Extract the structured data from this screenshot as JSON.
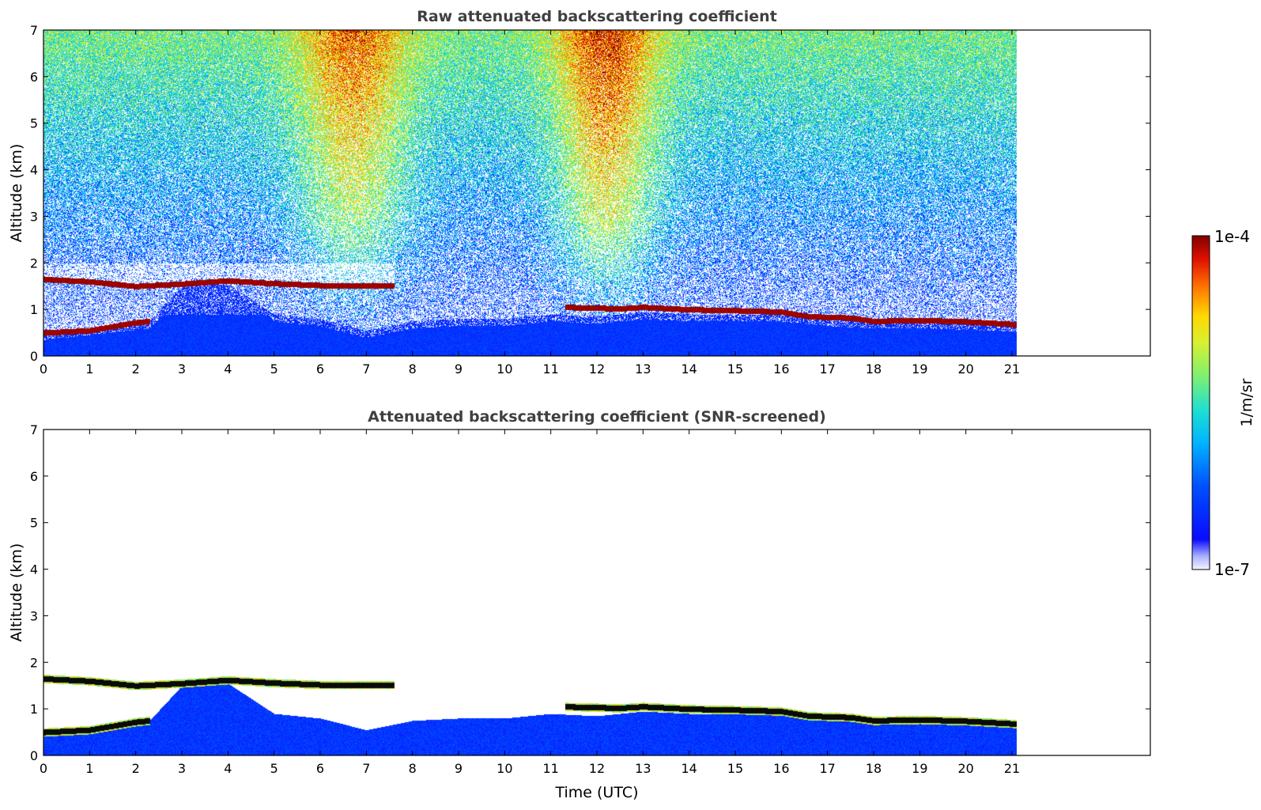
{
  "chart_data": [
    {
      "type": "heatmap",
      "title": "Raw attenuated backscattering coefficient",
      "xlabel": "",
      "ylabel": "Altitude (km)",
      "xlim": [
        0,
        24
      ],
      "ylim": [
        0,
        7
      ],
      "xticks": [
        "0",
        "1",
        "2",
        "3",
        "4",
        "5",
        "6",
        "7",
        "8",
        "9",
        "10",
        "11",
        "12",
        "13",
        "14",
        "15",
        "16",
        "17",
        "18",
        "19",
        "20",
        "21"
      ],
      "yticks": [
        "0",
        "1",
        "2",
        "3",
        "4",
        "5",
        "6",
        "7"
      ],
      "data_end_hour": 21.1,
      "variant": "raw"
    },
    {
      "type": "heatmap",
      "title": "Attenuated backscattering coefficient (SNR-screened)",
      "xlabel": "Time (UTC)",
      "ylabel": "Altitude (km)",
      "xlim": [
        0,
        24
      ],
      "ylim": [
        0,
        7
      ],
      "xticks": [
        "0",
        "1",
        "2",
        "3",
        "4",
        "5",
        "6",
        "7",
        "8",
        "9",
        "10",
        "11",
        "12",
        "13",
        "14",
        "15",
        "16",
        "17",
        "18",
        "19",
        "20",
        "21"
      ],
      "yticks": [
        "0",
        "1",
        "2",
        "3",
        "4",
        "5",
        "6",
        "7"
      ],
      "data_end_hour": 21.1,
      "variant": "screened"
    }
  ],
  "colorbar": {
    "label": "1/m/sr",
    "max_label": "1e-4",
    "min_label": "1e-7",
    "scale": "log",
    "min": 1e-07,
    "max": 0.0001
  },
  "cloud_layer": [
    [
      0.0,
      1.65
    ],
    [
      1.0,
      1.6
    ],
    [
      2.0,
      1.5
    ],
    [
      3.0,
      1.55
    ],
    [
      3.7,
      1.6
    ],
    [
      4.0,
      1.62
    ],
    [
      5.0,
      1.56
    ],
    [
      6.0,
      1.52
    ],
    [
      7.0,
      1.52
    ],
    [
      7.6,
      1.52
    ]
  ],
  "cloud_layer_2": [
    [
      11.3,
      1.05
    ],
    [
      12.5,
      1.02
    ],
    [
      13.0,
      1.05
    ],
    [
      14.0,
      1.0
    ],
    [
      15.0,
      0.98
    ],
    [
      16.0,
      0.95
    ],
    [
      16.6,
      0.85
    ],
    [
      17.5,
      0.82
    ],
    [
      18.0,
      0.75
    ],
    [
      19.0,
      0.77
    ],
    [
      20.0,
      0.74
    ],
    [
      21.1,
      0.68
    ]
  ],
  "lower_layer": [
    [
      0.0,
      0.5
    ],
    [
      1.0,
      0.55
    ],
    [
      2.0,
      0.72
    ],
    [
      2.3,
      0.75
    ]
  ],
  "aerosol_top": [
    [
      0.0,
      0.5
    ],
    [
      2.3,
      0.75
    ],
    [
      3.0,
      1.5
    ],
    [
      4.0,
      1.55
    ],
    [
      5.0,
      0.9
    ],
    [
      6.0,
      0.8
    ],
    [
      7.0,
      0.55
    ],
    [
      8.0,
      0.75
    ],
    [
      9.0,
      0.8
    ],
    [
      10.0,
      0.8
    ],
    [
      11.0,
      0.9
    ],
    [
      12.0,
      0.85
    ],
    [
      13.0,
      0.95
    ],
    [
      14.0,
      0.9
    ],
    [
      15.0,
      0.9
    ],
    [
      16.0,
      0.9
    ],
    [
      17.0,
      0.8
    ],
    [
      18.0,
      0.75
    ],
    [
      19.0,
      0.75
    ],
    [
      20.0,
      0.72
    ],
    [
      21.1,
      0.68
    ]
  ]
}
